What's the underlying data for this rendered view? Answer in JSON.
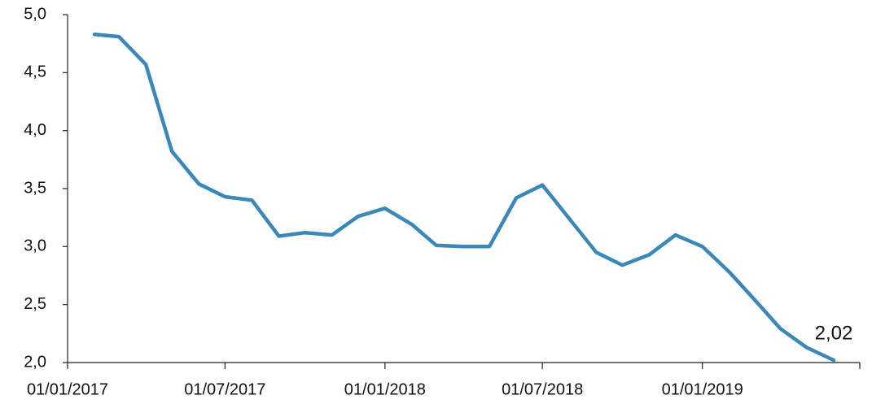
{
  "chart_data": {
    "type": "line",
    "x": [
      "2017-02-01",
      "2017-03-01",
      "2017-04-01",
      "2017-05-01",
      "2017-06-01",
      "2017-07-01",
      "2017-08-01",
      "2017-09-01",
      "2017-10-01",
      "2017-11-01",
      "2017-12-01",
      "2018-01-01",
      "2018-02-01",
      "2018-03-01",
      "2018-04-01",
      "2018-05-01",
      "2018-06-01",
      "2018-07-01",
      "2018-08-01",
      "2018-09-01",
      "2018-10-01",
      "2018-11-01",
      "2018-12-01",
      "2019-01-01",
      "2019-02-01",
      "2019-03-01",
      "2019-04-01",
      "2019-05-01",
      "2019-06-01"
    ],
    "series": [
      {
        "color": "#3a87b8",
        "values": [
          4.83,
          4.81,
          4.57,
          3.82,
          3.54,
          3.43,
          3.4,
          3.09,
          3.12,
          3.1,
          3.26,
          3.33,
          3.19,
          3.01,
          3.0,
          3.0,
          3.42,
          3.53,
          3.24,
          2.95,
          2.84,
          2.93,
          3.1,
          3.0,
          2.78,
          2.55,
          2.29,
          2.13,
          2.02
        ],
        "value_labels": [
          null,
          null,
          null,
          null,
          null,
          null,
          null,
          null,
          null,
          null,
          null,
          null,
          null,
          null,
          null,
          null,
          null,
          null,
          null,
          null,
          null,
          null,
          null,
          null,
          null,
          null,
          null,
          null,
          "2,02"
        ]
      }
    ],
    "xlim": [
      "2017-01-01",
      "2019-07-01"
    ],
    "xticks": [
      {
        "value": "2017-01-01",
        "label": "01/01/2017"
      },
      {
        "value": "2017-07-01",
        "label": "01/07/2017"
      },
      {
        "value": "2018-01-01",
        "label": "01/01/2018"
      },
      {
        "value": "2018-07-01",
        "label": "01/07/2018"
      },
      {
        "value": "2019-01-01",
        "label": "01/01/2019"
      }
    ],
    "ylim": [
      2,
      5
    ],
    "yticks": [
      {
        "value": 2,
        "label": "2,0"
      },
      {
        "value": 2.5,
        "label": "2,5"
      },
      {
        "value": 3,
        "label": "3,0"
      },
      {
        "value": 3.5,
        "label": "3,5"
      },
      {
        "value": 4,
        "label": "4,0"
      },
      {
        "value": 4.5,
        "label": "4,5"
      },
      {
        "value": 5,
        "label": "5,0"
      }
    ]
  }
}
